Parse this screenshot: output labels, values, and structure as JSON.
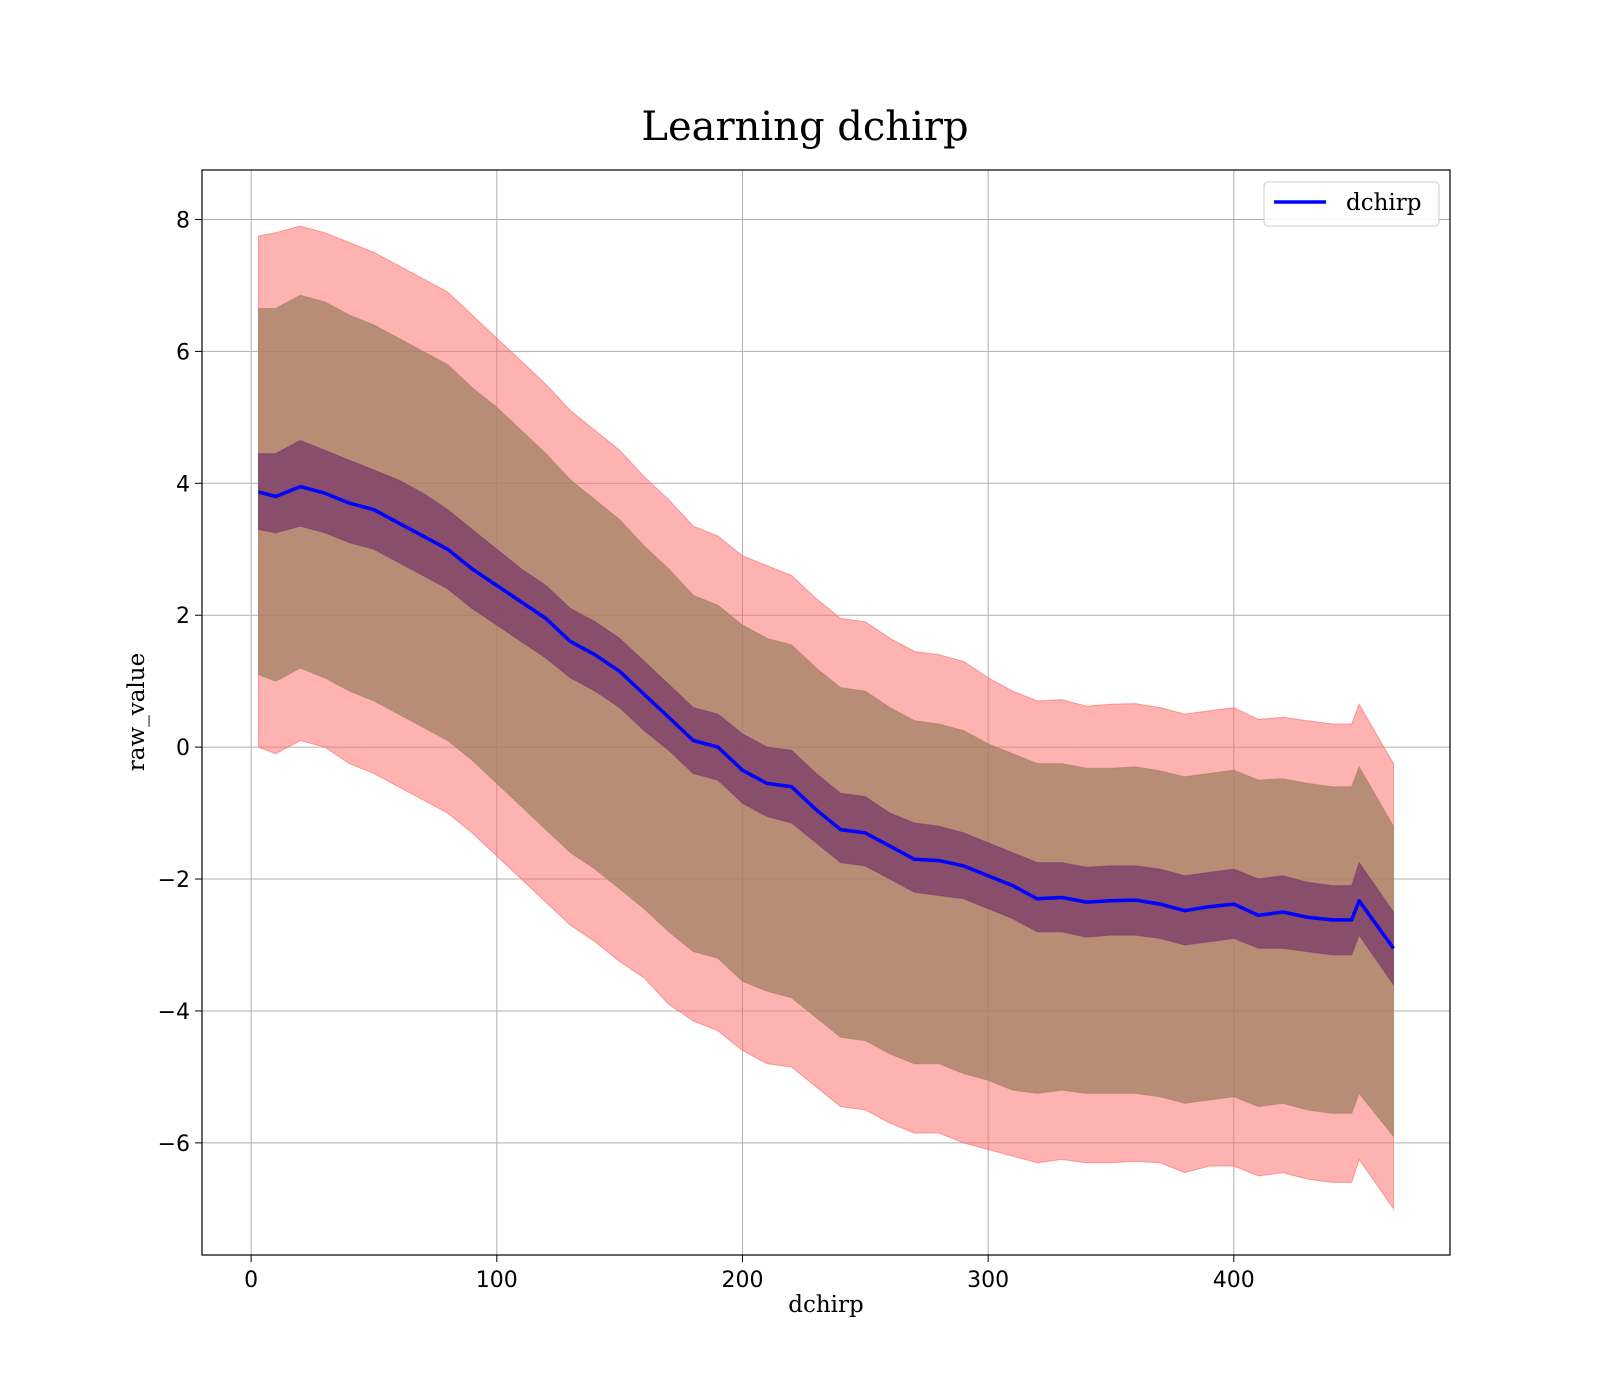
{
  "chart_data": {
    "type": "line",
    "title": "Learning dchirp",
    "xlabel": "dchirp",
    "ylabel": "raw_value",
    "xlim": [
      -20,
      488
    ],
    "ylim": [
      -7.7,
      8.75
    ],
    "xticks": [
      0,
      100,
      200,
      300,
      400
    ],
    "yticks": [
      -6,
      -4,
      -2,
      0,
      2,
      4,
      6,
      8
    ],
    "grid": true,
    "legend_position": "top-right",
    "colors": {
      "mean_line": "#0000ff",
      "outer_band": "#ff6666",
      "middle_band": "#a08060",
      "inner_band": "#7a3a6a"
    },
    "series": [
      {
        "name": "dchirp",
        "x": [
          3,
          10,
          20,
          30,
          40,
          50,
          60,
          70,
          80,
          90,
          100,
          110,
          120,
          130,
          140,
          150,
          160,
          170,
          180,
          190,
          200,
          210,
          220,
          230,
          240,
          250,
          260,
          270,
          280,
          290,
          300,
          310,
          320,
          330,
          340,
          350,
          360,
          370,
          380,
          390,
          400,
          410,
          420,
          430,
          440,
          448,
          451,
          465
        ],
        "y": [
          3.87,
          3.8,
          3.95,
          3.85,
          3.7,
          3.6,
          3.4,
          3.2,
          3.0,
          2.7,
          2.45,
          2.2,
          1.95,
          1.6,
          1.4,
          1.15,
          0.8,
          0.45,
          0.1,
          0.0,
          -0.35,
          -0.55,
          -0.6,
          -0.95,
          -1.25,
          -1.3,
          -1.5,
          -1.7,
          -1.72,
          -1.8,
          -1.95,
          -2.1,
          -2.3,
          -2.28,
          -2.35,
          -2.33,
          -2.32,
          -2.38,
          -2.48,
          -2.42,
          -2.38,
          -2.55,
          -2.5,
          -2.58,
          -2.62,
          -2.62,
          -2.33,
          -3.05
        ]
      }
    ],
    "bands": [
      {
        "name": "outer",
        "upper": [
          7.75,
          7.8,
          7.9,
          7.8,
          7.65,
          7.5,
          7.3,
          7.1,
          6.9,
          6.55,
          6.2,
          5.85,
          5.5,
          5.1,
          4.8,
          4.5,
          4.1,
          3.75,
          3.35,
          3.2,
          2.9,
          2.75,
          2.6,
          2.25,
          1.95,
          1.9,
          1.65,
          1.45,
          1.4,
          1.3,
          1.05,
          0.85,
          0.7,
          0.72,
          0.62,
          0.65,
          0.66,
          0.6,
          0.5,
          0.55,
          0.6,
          0.42,
          0.45,
          0.4,
          0.35,
          0.35,
          0.65,
          -0.25
        ],
        "lower": [
          0.0,
          -0.1,
          0.1,
          0.0,
          -0.25,
          -0.4,
          -0.6,
          -0.8,
          -1.0,
          -1.3,
          -1.65,
          -2.0,
          -2.35,
          -2.7,
          -2.95,
          -3.25,
          -3.5,
          -3.9,
          -4.15,
          -4.3,
          -4.6,
          -4.8,
          -4.85,
          -5.15,
          -5.45,
          -5.5,
          -5.7,
          -5.85,
          -5.85,
          -6.0,
          -6.1,
          -6.2,
          -6.3,
          -6.25,
          -6.3,
          -6.3,
          -6.28,
          -6.3,
          -6.45,
          -6.35,
          -6.35,
          -6.5,
          -6.45,
          -6.55,
          -6.6,
          -6.6,
          -6.25,
          -7.0
        ]
      },
      {
        "name": "middle",
        "upper": [
          6.65,
          6.65,
          6.85,
          6.75,
          6.55,
          6.4,
          6.2,
          6.0,
          5.8,
          5.45,
          5.15,
          4.8,
          4.45,
          4.05,
          3.75,
          3.45,
          3.05,
          2.7,
          2.3,
          2.15,
          1.85,
          1.65,
          1.55,
          1.2,
          0.9,
          0.85,
          0.6,
          0.4,
          0.35,
          0.25,
          0.05,
          -0.1,
          -0.25,
          -0.25,
          -0.32,
          -0.32,
          -0.3,
          -0.36,
          -0.45,
          -0.4,
          -0.35,
          -0.5,
          -0.48,
          -0.55,
          -0.6,
          -0.6,
          -0.3,
          -1.2
        ],
        "lower": [
          1.1,
          1.0,
          1.2,
          1.05,
          0.85,
          0.7,
          0.5,
          0.3,
          0.1,
          -0.2,
          -0.55,
          -0.9,
          -1.25,
          -1.6,
          -1.85,
          -2.15,
          -2.45,
          -2.8,
          -3.1,
          -3.2,
          -3.55,
          -3.7,
          -3.8,
          -4.1,
          -4.4,
          -4.45,
          -4.65,
          -4.8,
          -4.8,
          -4.95,
          -5.05,
          -5.2,
          -5.25,
          -5.2,
          -5.25,
          -5.25,
          -5.25,
          -5.3,
          -5.4,
          -5.35,
          -5.3,
          -5.45,
          -5.4,
          -5.5,
          -5.55,
          -5.55,
          -5.25,
          -5.9
        ]
      },
      {
        "name": "inner",
        "upper": [
          4.45,
          4.45,
          4.65,
          4.5,
          4.35,
          4.2,
          4.05,
          3.85,
          3.6,
          3.3,
          3.0,
          2.7,
          2.45,
          2.1,
          1.9,
          1.65,
          1.3,
          0.95,
          0.6,
          0.5,
          0.2,
          0.0,
          -0.05,
          -0.4,
          -0.7,
          -0.75,
          -1.0,
          -1.15,
          -1.2,
          -1.3,
          -1.45,
          -1.6,
          -1.75,
          -1.75,
          -1.82,
          -1.8,
          -1.8,
          -1.85,
          -1.95,
          -1.9,
          -1.85,
          -2.0,
          -1.95,
          -2.05,
          -2.1,
          -2.1,
          -1.75,
          -2.5
        ],
        "lower": [
          3.3,
          3.25,
          3.35,
          3.25,
          3.1,
          3.0,
          2.8,
          2.6,
          2.4,
          2.1,
          1.85,
          1.6,
          1.35,
          1.05,
          0.85,
          0.6,
          0.25,
          -0.05,
          -0.4,
          -0.5,
          -0.85,
          -1.05,
          -1.15,
          -1.45,
          -1.75,
          -1.8,
          -2.0,
          -2.2,
          -2.25,
          -2.3,
          -2.45,
          -2.6,
          -2.8,
          -2.8,
          -2.88,
          -2.85,
          -2.85,
          -2.9,
          -3.0,
          -2.95,
          -2.9,
          -3.05,
          -3.05,
          -3.1,
          -3.15,
          -3.15,
          -2.85,
          -3.6
        ]
      }
    ]
  }
}
